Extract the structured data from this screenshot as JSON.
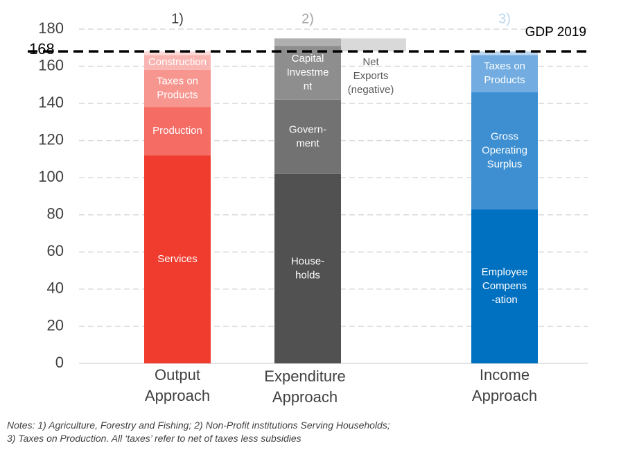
{
  "chart_data": {
    "type": "bar",
    "stacked": true,
    "ylim": [
      0,
      180
    ],
    "yticks": [
      0,
      20,
      40,
      60,
      80,
      100,
      120,
      140,
      160,
      180
    ],
    "grid": true,
    "reference_line": {
      "value": 168,
      "label": "GDP 2019",
      "tick_label": "168"
    },
    "categories": [
      "Output\nApproach",
      "Expenditure\nApproach",
      "Income\nApproach"
    ],
    "note_markers": [
      {
        "category": 0,
        "text": "1)",
        "color": "#404040"
      },
      {
        "category": 1,
        "text": "2)",
        "color": "#A6A6A6"
      },
      {
        "category": 2,
        "text": "3)",
        "color": "#BDD7EE"
      }
    ],
    "bars": [
      {
        "category": 0,
        "segments": [
          {
            "label": "Services",
            "value": 112,
            "color": "#F03C2E"
          },
          {
            "label": "Production",
            "value": 26,
            "color": "#F46C64"
          },
          {
            "label": "Taxes on\nProducts",
            "value": 20,
            "color": "#F7958F"
          },
          {
            "label": "Construction",
            "value": 8,
            "color": "#F9B5B1"
          },
          {
            "label": "",
            "value": 2,
            "color": "#FCDAD8"
          }
        ]
      },
      {
        "category": 1,
        "segments": [
          {
            "label": "House-\nholds",
            "value": 102,
            "color": "#515151"
          },
          {
            "label": "Govern-\nment",
            "value": 40,
            "color": "#727272"
          },
          {
            "label": "Capital\nInvestme\nnt",
            "value": 29,
            "color": "#8E8E8E"
          },
          {
            "label": "",
            "value": 4,
            "color": "#AFAFAF"
          }
        ]
      },
      {
        "category": 2,
        "segments": [
          {
            "label": "Employee\nCompens\n-ation",
            "value": 83,
            "color": "#0070C0"
          },
          {
            "label": "Gross\nOperating\nSurplus",
            "value": 63,
            "color": "#3D8FD1"
          },
          {
            "label": "Taxes on\nProducts",
            "value": 20,
            "color": "#72ACE0"
          },
          {
            "label": "",
            "value": 2,
            "color": "#BDD7EE"
          }
        ]
      }
    ],
    "floating": [
      {
        "label": "Net\nExports\n(negative)",
        "from": 168,
        "to": 175,
        "color": "#D9D9D9",
        "between": [
          1,
          2
        ]
      }
    ]
  },
  "notes": [
    "Notes: 1) Agriculture, Forestry and Fishing; 2) Non-Profit institutions Serving Households;",
    "3) Taxes on Production. All ‘taxes’ refer to net of taxes less subsidies"
  ]
}
